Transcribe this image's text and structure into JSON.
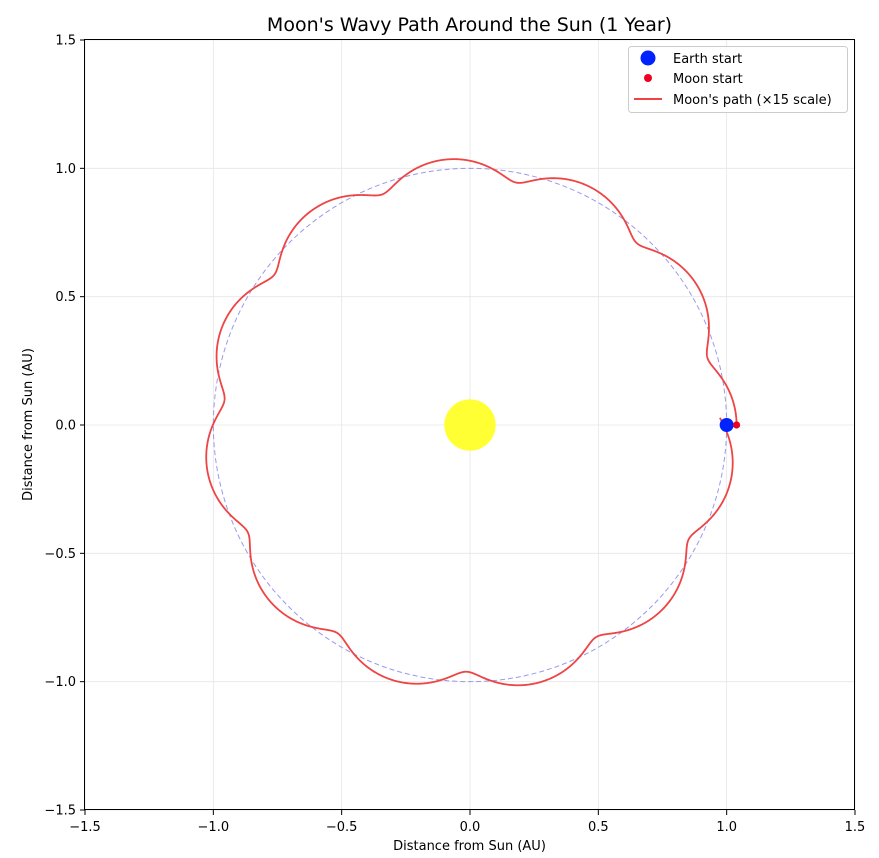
{
  "chart_data": {
    "type": "line",
    "title": "Moon's Wavy Path Around the Sun (1 Year)",
    "xlabel": "Distance from Sun (AU)",
    "ylabel": "Distance from Sun (AU)",
    "xlim": [
      -1.5,
      1.5
    ],
    "ylim": [
      -1.5,
      1.5
    ],
    "xticks": [
      -1.5,
      -1.0,
      -0.5,
      0.0,
      0.5,
      1.0,
      1.5
    ],
    "yticks": [
      -1.5,
      -1.0,
      -0.5,
      0.0,
      0.5,
      1.0,
      1.5
    ],
    "xtick_labels": [
      "−1.5",
      "−1.0",
      "−0.5",
      "0.0",
      "0.5",
      "1.0",
      "1.5"
    ],
    "ytick_labels": [
      "−1.5",
      "−1.0",
      "−0.5",
      "0.0",
      "0.5",
      "1.0",
      "1.5"
    ],
    "grid": true,
    "legend_position": "top-right",
    "sun": {
      "x": 0.0,
      "y": 0.0,
      "radius_au": 0.1,
      "color": "#ffff33"
    },
    "earth_orbit": {
      "radius_au": 1.0,
      "color": "#9999ee",
      "style": "dashed"
    },
    "moon_path": {
      "earth_orbit_radius_au": 1.0,
      "moon_offset_au": 0.0386,
      "lunar_cycles_per_year": 12.37,
      "color": "#ee4444"
    },
    "series": [
      {
        "name": "Earth start",
        "x": 1.0,
        "y": 0.0,
        "color": "#0022ff",
        "marker": "circle-large"
      },
      {
        "name": "Moon start",
        "x": 1.0386,
        "y": 0.0,
        "color": "#ee0022",
        "marker": "circle-small"
      },
      {
        "name": "Moon's path (×15 scale)",
        "color": "#ee4444",
        "marker": "line"
      }
    ]
  }
}
